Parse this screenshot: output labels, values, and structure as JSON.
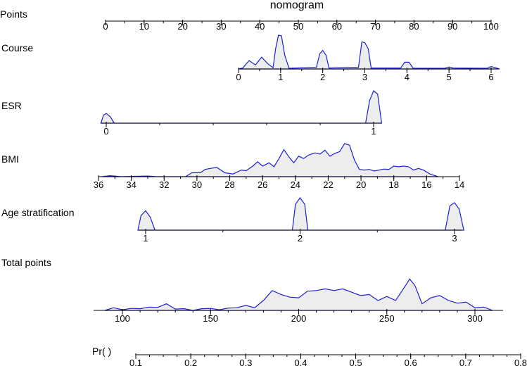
{
  "chart_data": {
    "type": "nomogram",
    "title": "nomogram",
    "colors": {
      "density_line": "#1f1fd6",
      "density_fill": "#ededed",
      "axis": "#000000"
    },
    "scales": [
      {
        "key": "points",
        "label": "Points",
        "ticks": [
          "0",
          "10",
          "20",
          "30",
          "40",
          "50",
          "60",
          "70",
          "80",
          "90",
          "100"
        ],
        "values": [
          0,
          10,
          20,
          30,
          40,
          50,
          60,
          70,
          80,
          90,
          100
        ]
      },
      {
        "key": "course",
        "label": "Course",
        "ticks": [
          "0",
          "1",
          "2",
          "3",
          "4",
          "5",
          "6"
        ],
        "values": [
          0,
          1,
          2,
          3,
          4,
          5,
          6
        ],
        "density": [
          [
            0,
            0
          ],
          [
            0.1,
            0.03
          ],
          [
            0.25,
            0.25
          ],
          [
            0.4,
            0.12
          ],
          [
            0.55,
            0.35
          ],
          [
            0.7,
            0.15
          ],
          [
            0.82,
            0.04
          ],
          [
            0.88,
            0.6
          ],
          [
            0.95,
            1
          ],
          [
            1.02,
            0.98
          ],
          [
            1.1,
            0.4
          ],
          [
            1.2,
            0.02
          ],
          [
            1.85,
            0.05
          ],
          [
            1.93,
            0.45
          ],
          [
            2.0,
            0.55
          ],
          [
            2.08,
            0.4
          ],
          [
            2.15,
            0.03
          ],
          [
            2.85,
            0.05
          ],
          [
            2.93,
            0.8
          ],
          [
            3.0,
            0.78
          ],
          [
            3.08,
            0.6
          ],
          [
            3.15,
            0.03
          ],
          [
            3.85,
            0.03
          ],
          [
            3.95,
            0.2
          ],
          [
            4.05,
            0.2
          ],
          [
            4.15,
            0.02
          ],
          [
            4.9,
            0.02
          ],
          [
            5.0,
            0.06
          ],
          [
            5.1,
            0.03
          ],
          [
            5.9,
            0.02
          ],
          [
            6.0,
            0.07
          ],
          [
            6.1,
            0.04
          ],
          [
            6.2,
            0.0
          ]
        ]
      },
      {
        "key": "esr",
        "label": "ESR",
        "ticks": [
          "0",
          "1"
        ],
        "values": [
          0,
          1
        ],
        "density": [
          [
            -0.02,
            0
          ],
          [
            -0.01,
            0.25
          ],
          [
            0.0,
            0.3
          ],
          [
            0.015,
            0.2
          ],
          [
            0.03,
            0
          ],
          [
            0.97,
            0
          ],
          [
            0.985,
            0.7
          ],
          [
            1.0,
            1
          ],
          [
            1.015,
            0.9
          ],
          [
            1.03,
            0
          ]
        ]
      },
      {
        "key": "bmi",
        "label": "BMI",
        "ticks": [
          "36",
          "34",
          "32",
          "30",
          "28",
          "26",
          "24",
          "22",
          "20",
          "18",
          "16",
          "14"
        ],
        "values": [
          36,
          34,
          32,
          30,
          28,
          26,
          24,
          22,
          20,
          18,
          16,
          14
        ],
        "density": [
          [
            35.8,
            0
          ],
          [
            35.3,
            0.03
          ],
          [
            34.6,
            0.0
          ],
          [
            33,
            0.02
          ],
          [
            32.5,
            0.0
          ],
          [
            30.7,
            0.0
          ],
          [
            30.3,
            0.12
          ],
          [
            29.8,
            0.12
          ],
          [
            29.5,
            0.22
          ],
          [
            28.8,
            0.28
          ],
          [
            28.3,
            0.12
          ],
          [
            27.8,
            0.08
          ],
          [
            27.3,
            0.2
          ],
          [
            27,
            0.18
          ],
          [
            26.6,
            0.32
          ],
          [
            26.3,
            0.45
          ],
          [
            26,
            0.32
          ],
          [
            25.6,
            0.42
          ],
          [
            25.3,
            0.3
          ],
          [
            25,
            0.55
          ],
          [
            24.7,
            0.82
          ],
          [
            24.4,
            0.6
          ],
          [
            24.1,
            0.42
          ],
          [
            23.8,
            0.62
          ],
          [
            23.5,
            0.55
          ],
          [
            23.2,
            0.65
          ],
          [
            22.8,
            0.72
          ],
          [
            22.5,
            0.68
          ],
          [
            22.2,
            0.8
          ],
          [
            21.9,
            0.62
          ],
          [
            21.6,
            0.7
          ],
          [
            21.3,
            0.76
          ],
          [
            21.0,
            1.0
          ],
          [
            20.7,
            0.95
          ],
          [
            20.4,
            0.5
          ],
          [
            20.1,
            0.22
          ],
          [
            19.8,
            0.2
          ],
          [
            19.5,
            0.22
          ],
          [
            19.2,
            0.17
          ],
          [
            18.9,
            0.2
          ],
          [
            18.6,
            0.23
          ],
          [
            18.3,
            0.22
          ],
          [
            18.0,
            0.32
          ],
          [
            17.7,
            0.3
          ],
          [
            17.4,
            0.32
          ],
          [
            17.1,
            0.3
          ],
          [
            16.8,
            0.2
          ],
          [
            16.5,
            0.25
          ],
          [
            16.2,
            0.2
          ],
          [
            15.8,
            0.08
          ],
          [
            15.3,
            0.0
          ]
        ]
      },
      {
        "key": "age",
        "label": "Age stratification",
        "ticks": [
          "1",
          "2",
          "3"
        ],
        "values": [
          1,
          2,
          3
        ],
        "density": [
          [
            0.95,
            0
          ],
          [
            0.97,
            0.45
          ],
          [
            1.0,
            0.6
          ],
          [
            1.03,
            0.4
          ],
          [
            1.06,
            0
          ],
          [
            1.95,
            0
          ],
          [
            1.97,
            0.8
          ],
          [
            2.0,
            1
          ],
          [
            2.03,
            0.8
          ],
          [
            2.05,
            0
          ],
          [
            2.94,
            0
          ],
          [
            2.97,
            0.75
          ],
          [
            3.0,
            0.85
          ],
          [
            3.03,
            0.65
          ],
          [
            3.06,
            0
          ]
        ]
      },
      {
        "key": "total",
        "label": "Total points",
        "ticks": [
          "100",
          "150",
          "200",
          "250",
          "300"
        ],
        "values": [
          100,
          150,
          200,
          250,
          300
        ],
        "density": [
          [
            90,
            0
          ],
          [
            95,
            0.08
          ],
          [
            100,
            0.02
          ],
          [
            105,
            0.06
          ],
          [
            110,
            0.05
          ],
          [
            115,
            0.1
          ],
          [
            120,
            0.09
          ],
          [
            125,
            0.2
          ],
          [
            130,
            0.04
          ],
          [
            135,
            0.05
          ],
          [
            140,
            0.0
          ],
          [
            145,
            0.05
          ],
          [
            150,
            0.06
          ],
          [
            155,
            0.02
          ],
          [
            160,
            0.07
          ],
          [
            165,
            0.08
          ],
          [
            170,
            0.15
          ],
          [
            175,
            0.08
          ],
          [
            180,
            0.3
          ],
          [
            185,
            0.6
          ],
          [
            190,
            0.48
          ],
          [
            195,
            0.4
          ],
          [
            200,
            0.38
          ],
          [
            205,
            0.58
          ],
          [
            210,
            0.6
          ],
          [
            215,
            0.65
          ],
          [
            220,
            0.6
          ],
          [
            225,
            0.65
          ],
          [
            230,
            0.55
          ],
          [
            235,
            0.45
          ],
          [
            240,
            0.48
          ],
          [
            245,
            0.3
          ],
          [
            250,
            0.42
          ],
          [
            255,
            0.3
          ],
          [
            260,
            0.7
          ],
          [
            263,
            0.95
          ],
          [
            266,
            0.75
          ],
          [
            270,
            0.2
          ],
          [
            275,
            0.38
          ],
          [
            280,
            0.45
          ],
          [
            285,
            0.3
          ],
          [
            290,
            0.22
          ],
          [
            295,
            0.25
          ],
          [
            300,
            0.08
          ],
          [
            305,
            0.1
          ],
          [
            310,
            0.0
          ]
        ]
      },
      {
        "key": "pr",
        "label": "Pr(  )",
        "ticks": [
          "0.1",
          "0.2",
          "0.3",
          "0.4",
          "0.5",
          "0.6",
          "0.7",
          "0.8"
        ],
        "values": [
          0.1,
          0.2,
          0.3,
          0.4,
          0.5,
          0.6,
          0.7,
          0.8
        ]
      }
    ]
  }
}
